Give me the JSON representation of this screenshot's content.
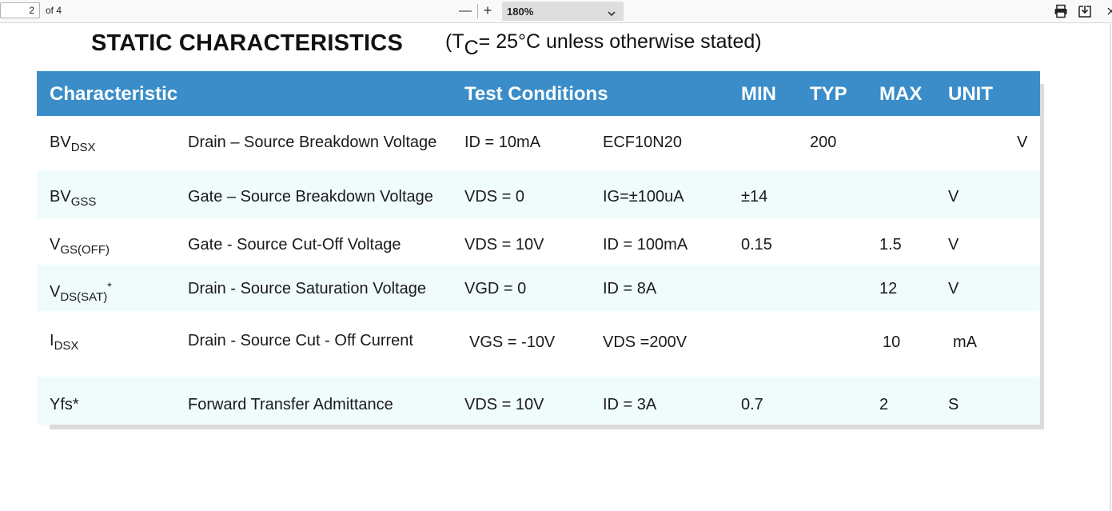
{
  "toolbar": {
    "page_number": "2",
    "page_of": "of 4",
    "zoom_out_symbol": "—",
    "zoom_in_symbol": "+",
    "zoom_level": "180%",
    "icons": [
      "chevron-down-icon",
      "print-icon",
      "download-icon",
      "close-icon"
    ]
  },
  "document": {
    "title": "STATIC CHARACTERISTICS",
    "condition_open": "(T",
    "condition_sub": "C",
    "condition_rest": "= 25°C unless otherwise stated)",
    "header_color": "#3a8dc9",
    "table": {
      "headers": {
        "characteristic": "Characteristic",
        "test_conditions": "Test Conditions",
        "min": "MIN",
        "typ": "TYP",
        "max": "MAX",
        "unit": "UNIT"
      },
      "rows": [
        {
          "sym": "BV",
          "sym_sub": "DSX",
          "sym_sup": "",
          "desc": "Drain – Source Breakdown Voltage",
          "cond1": "ID = 10mA",
          "cond2": "ECF10N20",
          "min": "",
          "typ": "200",
          "max": "",
          "unit": "V"
        },
        {
          "sym": "BV",
          "sym_sub": "GSS",
          "sym_sup": "",
          "desc": "Gate – Source Breakdown Voltage",
          "cond1": "VDS = 0",
          "cond2": "IG=±100uA",
          "min": "±14",
          "typ": "",
          "max": "",
          "unit": "V"
        },
        {
          "sym": "V",
          "sym_sub": "GS(OFF)",
          "sym_sup": "",
          "desc": "Gate - Source Cut-Off Voltage",
          "cond1": "VDS = 10V",
          "cond2": "ID = 100mA",
          "min": "0.15",
          "typ": "",
          "max": "1.5",
          "unit": "V"
        },
        {
          "sym": "V",
          "sym_sub": "DS(SAT)",
          "sym_sup": "*",
          "desc": "Drain - Source Saturation Voltage",
          "cond1": "VGD = 0",
          "cond2": "ID = 8A",
          "min": "",
          "typ": "",
          "max": "12",
          "unit": "V"
        },
        {
          "sym": "I",
          "sym_sub": "DSX",
          "sym_sup": "",
          "desc": "Drain - Source Cut - Off Current",
          "cond1": "VGS = -10V",
          "cond2": "VDS =200V",
          "min": "",
          "typ": "",
          "max": "10",
          "unit": "mA"
        },
        {
          "sym": "Yfs*",
          "sym_sub": "",
          "sym_sup": "",
          "desc": "Forward Transfer Admittance",
          "cond1": "VDS = 10V",
          "cond2": "ID = 3A",
          "min": "0.7",
          "typ": "",
          "max": "2",
          "unit": "S"
        }
      ]
    }
  }
}
